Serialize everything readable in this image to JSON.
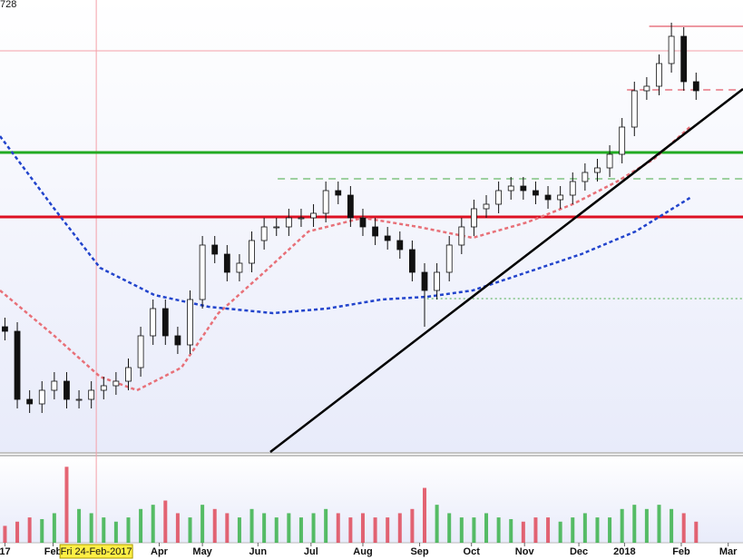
{
  "chart_data": {
    "type": "candlestick",
    "price_label": "728",
    "xlim": [
      -0.4,
      59.8
    ],
    "ylim": [
      2,
      500
    ],
    "vol_ylim": [
      0,
      100
    ],
    "xticks": [
      {
        "value": 0,
        "label": "17"
      },
      {
        "value": 3.9,
        "label": "Feb"
      },
      {
        "value": 12.5,
        "label": "Apr"
      },
      {
        "value": 16,
        "label": "May"
      },
      {
        "value": 20.5,
        "label": "Jun"
      },
      {
        "value": 24.8,
        "label": "Jul"
      },
      {
        "value": 29,
        "label": "Aug"
      },
      {
        "value": 33.6,
        "label": "Sep"
      },
      {
        "value": 37.8,
        "label": "Oct"
      },
      {
        "value": 42.1,
        "label": "Nov"
      },
      {
        "value": 46.5,
        "label": "Dec"
      },
      {
        "value": 50.2,
        "label": "2018"
      },
      {
        "value": 54.8,
        "label": "Feb"
      },
      {
        "value": 58.6,
        "label": "Mar"
      }
    ],
    "crosshair": {
      "x": 7.4,
      "y": 444,
      "label": "Fri 24-Feb-2017",
      "color": "#f4a0a8"
    },
    "up_color": "#22aa33",
    "down_color": "#dd3344",
    "open": [
      140,
      135,
      60,
      55,
      70,
      80,
      60,
      60,
      70,
      75,
      80,
      95,
      130,
      160,
      130,
      120,
      170,
      230,
      220,
      200,
      210,
      235,
      250,
      250,
      260,
      260,
      265,
      290,
      285,
      260,
      250,
      240,
      235,
      225,
      200,
      180,
      200,
      230,
      250,
      270,
      275,
      290,
      295,
      290,
      285,
      280,
      285,
      300,
      310,
      315,
      330,
      360,
      400,
      405,
      430,
      460,
      410
    ],
    "high": [
      150,
      145,
      70,
      80,
      90,
      90,
      70,
      80,
      85,
      90,
      105,
      140,
      170,
      170,
      140,
      180,
      240,
      240,
      230,
      220,
      245,
      260,
      260,
      270,
      270,
      275,
      300,
      300,
      295,
      270,
      260,
      250,
      245,
      235,
      210,
      210,
      240,
      260,
      280,
      285,
      300,
      305,
      305,
      300,
      295,
      295,
      310,
      320,
      325,
      340,
      370,
      410,
      415,
      440,
      475,
      470,
      420
    ],
    "low": [
      125,
      50,
      45,
      45,
      60,
      50,
      50,
      50,
      60,
      65,
      70,
      85,
      120,
      120,
      110,
      110,
      160,
      210,
      190,
      190,
      200,
      225,
      240,
      240,
      250,
      250,
      255,
      275,
      250,
      240,
      230,
      225,
      215,
      190,
      140,
      170,
      190,
      220,
      240,
      260,
      265,
      280,
      280,
      275,
      270,
      270,
      275,
      290,
      300,
      305,
      320,
      350,
      390,
      395,
      420,
      400,
      390
    ],
    "close": [
      135,
      60,
      55,
      70,
      80,
      60,
      60,
      70,
      75,
      80,
      95,
      130,
      160,
      130,
      120,
      170,
      230,
      220,
      200,
      210,
      235,
      250,
      250,
      260,
      260,
      265,
      290,
      285,
      260,
      250,
      240,
      235,
      225,
      200,
      180,
      200,
      230,
      250,
      270,
      275,
      290,
      295,
      290,
      285,
      280,
      285,
      300,
      310,
      315,
      330,
      360,
      400,
      405,
      430,
      460,
      410,
      400
    ],
    "volume": [
      20,
      25,
      30,
      28,
      35,
      90,
      40,
      35,
      30,
      25,
      30,
      40,
      45,
      50,
      35,
      30,
      45,
      40,
      35,
      30,
      40,
      35,
      30,
      35,
      30,
      35,
      40,
      35,
      30,
      35,
      30,
      30,
      35,
      40,
      65,
      45,
      35,
      30,
      30,
      35,
      30,
      28,
      25,
      30,
      30,
      25,
      30,
      35,
      30,
      30,
      40,
      45,
      40,
      45,
      40,
      35,
      25
    ],
    "ma": [
      {
        "color": "#e87078",
        "x": [
          -0.4,
          4,
          7.7,
          10.7,
          14.3,
          17.3,
          21,
          24.6,
          29,
          33.5,
          37.9,
          42.3,
          46,
          49.6,
          52.6,
          55.5
        ],
        "values": [
          180,
          130,
          85,
          70,
          95,
          155,
          200,
          245,
          260,
          250,
          238,
          255,
          275,
          300,
          325,
          360
        ]
      },
      {
        "color": "#2244cc",
        "x": [
          -0.4,
          4,
          7.7,
          12.1,
          16.5,
          21.7,
          26.1,
          30.5,
          34.2,
          37.9,
          42.3,
          46.7,
          51.1,
          55.5
        ],
        "values": [
          350,
          270,
          205,
          175,
          162,
          155,
          160,
          170,
          173,
          180,
          200,
          220,
          245,
          282
        ]
      }
    ],
    "trendline": {
      "color": "#000000",
      "x": [
        21.5,
        59.8
      ],
      "values": [
        2,
        402
      ]
    },
    "levels": [
      {
        "value": 332,
        "from": -0.4,
        "color": "#22aa22",
        "width": 3,
        "dash": ""
      },
      {
        "value": 261,
        "from": -0.4,
        "color": "#dd1122",
        "width": 3,
        "dash": ""
      },
      {
        "value": 303,
        "from": 22.1,
        "color": "#44aa44",
        "width": 1,
        "dash": "8 6"
      },
      {
        "value": 171,
        "from": 34.2,
        "color": "#44aa44",
        "width": 1,
        "dash": "2 3"
      },
      {
        "value": 401,
        "from": 50.4,
        "color": "#dd3344",
        "width": 1,
        "dash": "8 6"
      },
      {
        "value": 471,
        "from": 52.2,
        "color": "#dd3344",
        "width": 1,
        "dash": ""
      }
    ]
  }
}
